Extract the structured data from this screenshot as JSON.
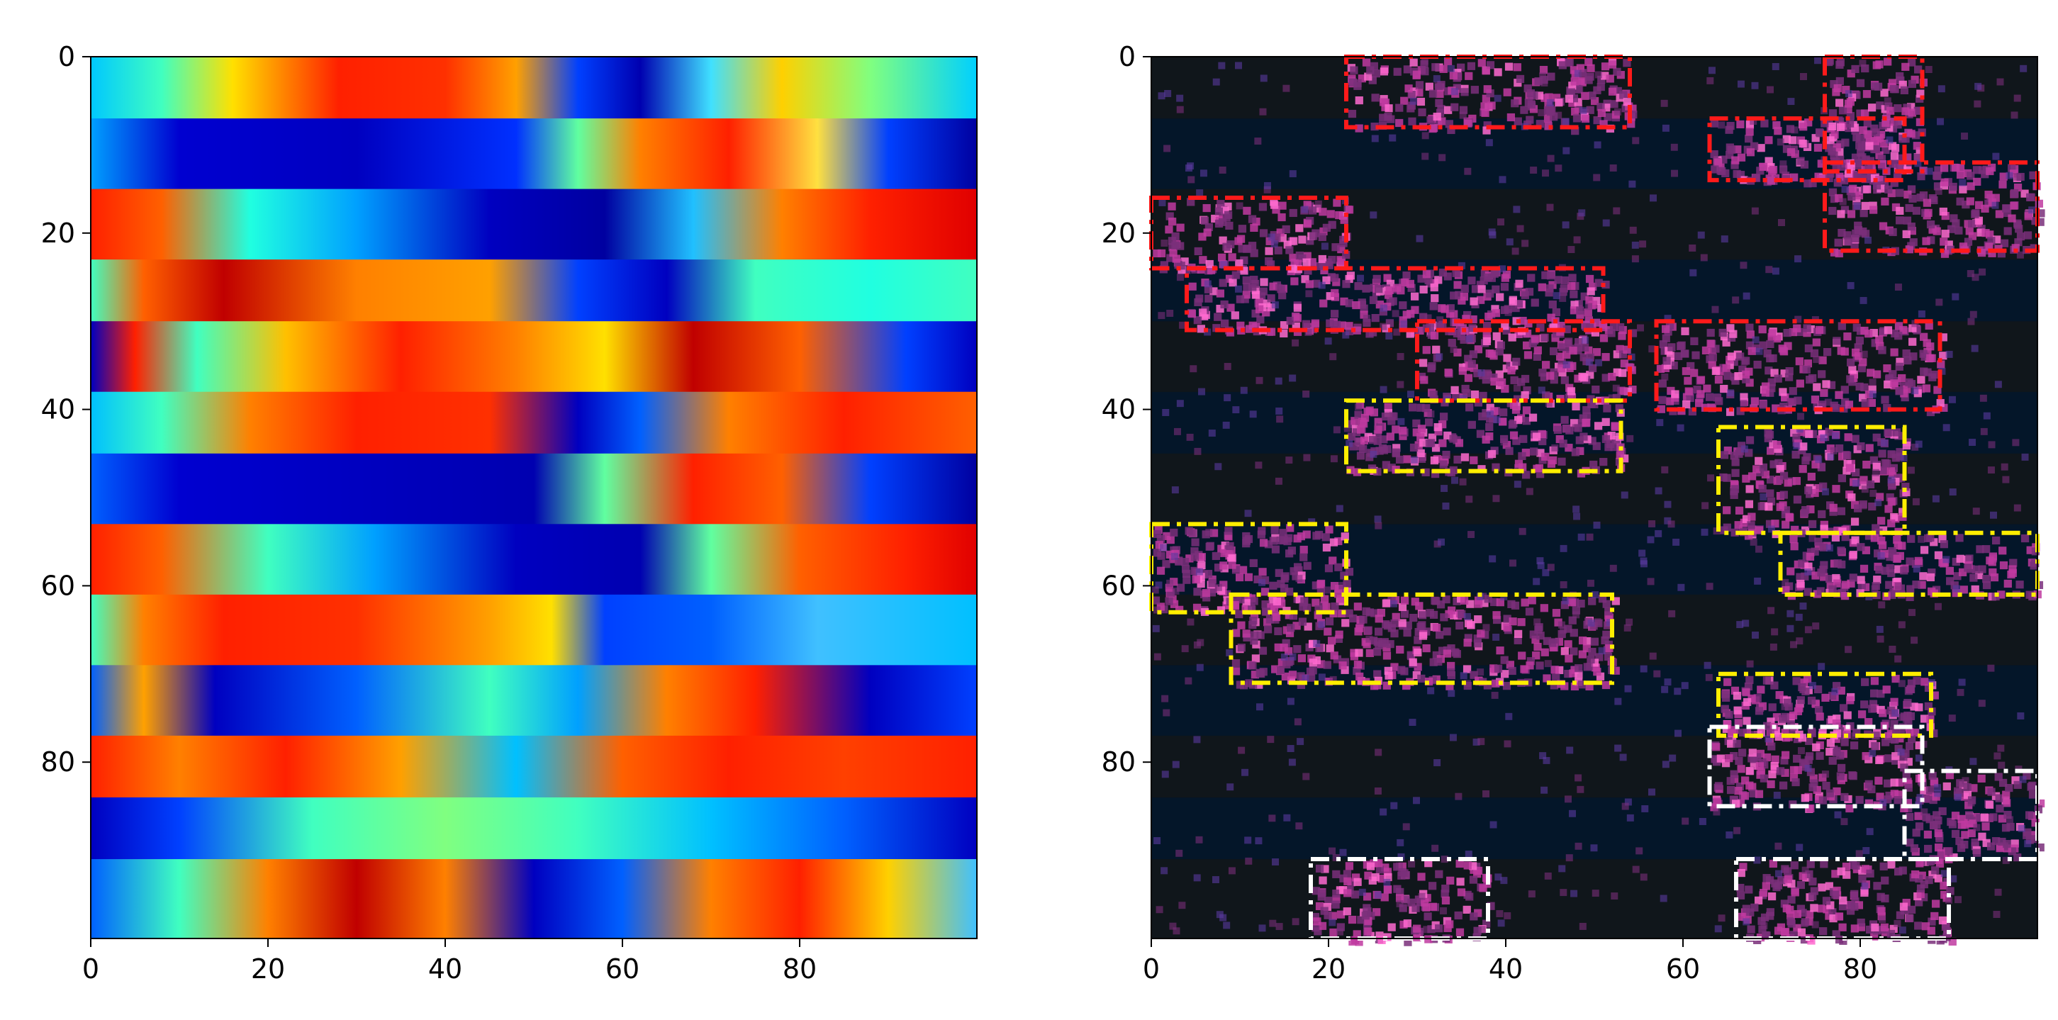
{
  "chart_data": [
    {
      "type": "heatmap",
      "title": "",
      "xlabel": "",
      "ylabel": "",
      "xlim": [
        0,
        100
      ],
      "ylim": [
        100,
        0
      ],
      "xticks": [
        0,
        20,
        40,
        60,
        80
      ],
      "yticks": [
        0,
        20,
        40,
        60,
        80
      ],
      "colormap": "jet",
      "rows": [
        {
          "y0": 0,
          "y1": 7,
          "stops": [
            [
              0,
              "#00c8ff"
            ],
            [
              8,
              "#40ffc0"
            ],
            [
              16,
              "#ffe000"
            ],
            [
              28,
              "#ff2000"
            ],
            [
              40,
              "#ff3000"
            ],
            [
              48,
              "#ffa000"
            ],
            [
              55,
              "#0040ff"
            ],
            [
              62,
              "#0000b0"
            ],
            [
              70,
              "#40e0ff"
            ],
            [
              78,
              "#ffd000"
            ],
            [
              88,
              "#80ff80"
            ],
            [
              100,
              "#00d0ff"
            ]
          ]
        },
        {
          "y0": 7,
          "y1": 15,
          "stops": [
            [
              0,
              "#00a0ff"
            ],
            [
              10,
              "#0000d0"
            ],
            [
              30,
              "#0000c0"
            ],
            [
              48,
              "#0030ff"
            ],
            [
              55,
              "#60ffa0"
            ],
            [
              62,
              "#ff8000"
            ],
            [
              72,
              "#ff2000"
            ],
            [
              82,
              "#ffe040"
            ],
            [
              90,
              "#0040ff"
            ],
            [
              100,
              "#0000a0"
            ]
          ]
        },
        {
          "y0": 15,
          "y1": 23,
          "stops": [
            [
              0,
              "#ff2000"
            ],
            [
              8,
              "#ff6000"
            ],
            [
              18,
              "#20ffe0"
            ],
            [
              30,
              "#00a0ff"
            ],
            [
              45,
              "#0000c0"
            ],
            [
              58,
              "#0000a0"
            ],
            [
              68,
              "#20c0ff"
            ],
            [
              78,
              "#ff8000"
            ],
            [
              88,
              "#ff2000"
            ],
            [
              100,
              "#e00000"
            ]
          ]
        },
        {
          "y0": 23,
          "y1": 30,
          "stops": [
            [
              0,
              "#40ffc0"
            ],
            [
              6,
              "#ff6000"
            ],
            [
              15,
              "#c00000"
            ],
            [
              30,
              "#ff8000"
            ],
            [
              45,
              "#ffa000"
            ],
            [
              55,
              "#0040ff"
            ],
            [
              65,
              "#0000c0"
            ],
            [
              75,
              "#40ffc0"
            ],
            [
              88,
              "#20ffe0"
            ],
            [
              100,
              "#40ffc0"
            ]
          ]
        },
        {
          "y0": 30,
          "y1": 38,
          "stops": [
            [
              0,
              "#0000c0"
            ],
            [
              5,
              "#ff2000"
            ],
            [
              12,
              "#40ffc0"
            ],
            [
              22,
              "#ffc000"
            ],
            [
              35,
              "#ff2000"
            ],
            [
              48,
              "#ff8000"
            ],
            [
              58,
              "#ffe000"
            ],
            [
              68,
              "#c00000"
            ],
            [
              80,
              "#ff6000"
            ],
            [
              92,
              "#0040ff"
            ],
            [
              100,
              "#0000c0"
            ]
          ]
        },
        {
          "y0": 38,
          "y1": 45,
          "stops": [
            [
              0,
              "#00c0ff"
            ],
            [
              8,
              "#40ffc0"
            ],
            [
              18,
              "#ff8000"
            ],
            [
              30,
              "#ff2000"
            ],
            [
              45,
              "#ff3000"
            ],
            [
              55,
              "#0000c0"
            ],
            [
              62,
              "#0060ff"
            ],
            [
              72,
              "#ff8000"
            ],
            [
              85,
              "#ff2000"
            ],
            [
              100,
              "#ff6000"
            ]
          ]
        },
        {
          "y0": 45,
          "y1": 53,
          "stops": [
            [
              0,
              "#0060ff"
            ],
            [
              10,
              "#0000d0"
            ],
            [
              30,
              "#0000c0"
            ],
            [
              50,
              "#0000b0"
            ],
            [
              58,
              "#60ffa0"
            ],
            [
              68,
              "#ff2000"
            ],
            [
              78,
              "#ff6000"
            ],
            [
              88,
              "#0040ff"
            ],
            [
              100,
              "#0000a0"
            ]
          ]
        },
        {
          "y0": 53,
          "y1": 61,
          "stops": [
            [
              0,
              "#ff2000"
            ],
            [
              8,
              "#ff6000"
            ],
            [
              20,
              "#40ffc0"
            ],
            [
              32,
              "#00a0ff"
            ],
            [
              48,
              "#0000c0"
            ],
            [
              62,
              "#0000b0"
            ],
            [
              70,
              "#60ffa0"
            ],
            [
              80,
              "#ff6000"
            ],
            [
              92,
              "#ff2000"
            ],
            [
              100,
              "#e00000"
            ]
          ]
        },
        {
          "y0": 61,
          "y1": 69,
          "stops": [
            [
              0,
              "#40ffc0"
            ],
            [
              6,
              "#ff8000"
            ],
            [
              15,
              "#ff2000"
            ],
            [
              30,
              "#ff3000"
            ],
            [
              45,
              "#ffa000"
            ],
            [
              52,
              "#ffe000"
            ],
            [
              58,
              "#0040ff"
            ],
            [
              70,
              "#0060ff"
            ],
            [
              82,
              "#40c0ff"
            ],
            [
              100,
              "#00c0ff"
            ]
          ]
        },
        {
          "y0": 69,
          "y1": 77,
          "stops": [
            [
              0,
              "#0060ff"
            ],
            [
              6,
              "#ffa000"
            ],
            [
              14,
              "#0000c0"
            ],
            [
              30,
              "#0060ff"
            ],
            [
              45,
              "#40ffc0"
            ],
            [
              55,
              "#00a0ff"
            ],
            [
              65,
              "#ff8000"
            ],
            [
              75,
              "#ff2000"
            ],
            [
              88,
              "#0000c0"
            ],
            [
              100,
              "#0040ff"
            ]
          ]
        },
        {
          "y0": 77,
          "y1": 84,
          "stops": [
            [
              0,
              "#ff2000"
            ],
            [
              10,
              "#ff8000"
            ],
            [
              22,
              "#ff2000"
            ],
            [
              35,
              "#ffa000"
            ],
            [
              48,
              "#00c0ff"
            ],
            [
              60,
              "#ff6000"
            ],
            [
              72,
              "#ff2000"
            ],
            [
              85,
              "#ff4000"
            ],
            [
              100,
              "#ff2000"
            ]
          ]
        },
        {
          "y0": 84,
          "y1": 91,
          "stops": [
            [
              0,
              "#0000c0"
            ],
            [
              10,
              "#0040ff"
            ],
            [
              25,
              "#40ffc0"
            ],
            [
              40,
              "#80ff80"
            ],
            [
              55,
              "#40ffc0"
            ],
            [
              70,
              "#00c0ff"
            ],
            [
              85,
              "#0060ff"
            ],
            [
              100,
              "#0000c0"
            ]
          ]
        },
        {
          "y0": 91,
          "y1": 100,
          "stops": [
            [
              0,
              "#0060ff"
            ],
            [
              10,
              "#40ffc0"
            ],
            [
              20,
              "#ff8000"
            ],
            [
              30,
              "#c00000"
            ],
            [
              40,
              "#ff8000"
            ],
            [
              50,
              "#0000c0"
            ],
            [
              60,
              "#0060ff"
            ],
            [
              70,
              "#ff8000"
            ],
            [
              80,
              "#ff2000"
            ],
            [
              90,
              "#ffd000"
            ],
            [
              100,
              "#40c0ff"
            ]
          ]
        }
      ]
    },
    {
      "type": "heatmap",
      "title": "",
      "xlabel": "",
      "ylabel": "",
      "xlim": [
        0,
        100
      ],
      "ylim": [
        100,
        0
      ],
      "xticks": [
        0,
        20,
        40,
        60,
        80
      ],
      "yticks": [
        0,
        20,
        40,
        60,
        80
      ],
      "background_color": "#061a28",
      "cluster_color": "#c03aa0",
      "boxes": [
        {
          "x": [
            22,
            54
          ],
          "y": [
            0,
            8
          ],
          "color": "#ff1a1a"
        },
        {
          "x": [
            76,
            87
          ],
          "y": [
            0,
            13
          ],
          "color": "#ff1a1a"
        },
        {
          "x": [
            63,
            85
          ],
          "y": [
            7,
            14
          ],
          "color": "#ff1a1a"
        },
        {
          "x": [
            76,
            100
          ],
          "y": [
            12,
            22
          ],
          "color": "#ff1a1a"
        },
        {
          "x": [
            0,
            22
          ],
          "y": [
            16,
            24
          ],
          "color": "#ff1a1a"
        },
        {
          "x": [
            4,
            51
          ],
          "y": [
            24,
            31
          ],
          "color": "#ff1a1a"
        },
        {
          "x": [
            30,
            54
          ],
          "y": [
            30,
            39
          ],
          "color": "#ff1a1a"
        },
        {
          "x": [
            57,
            89
          ],
          "y": [
            30,
            40
          ],
          "color": "#ff1a1a"
        },
        {
          "x": [
            22,
            53
          ],
          "y": [
            39,
            47
          ],
          "color": "#ffee00"
        },
        {
          "x": [
            64,
            85
          ],
          "y": [
            42,
            54
          ],
          "color": "#ffee00"
        },
        {
          "x": [
            0,
            22
          ],
          "y": [
            53,
            63
          ],
          "color": "#ffee00"
        },
        {
          "x": [
            71,
            100
          ],
          "y": [
            54,
            61
          ],
          "color": "#ffee00"
        },
        {
          "x": [
            9,
            52
          ],
          "y": [
            61,
            71
          ],
          "color": "#ffee00"
        },
        {
          "x": [
            64,
            88
          ],
          "y": [
            70,
            77
          ],
          "color": "#ffee00"
        },
        {
          "x": [
            63,
            87
          ],
          "y": [
            76,
            85
          ],
          "color": "#ffffff"
        },
        {
          "x": [
            85,
            100
          ],
          "y": [
            81,
            91
          ],
          "color": "#ffffff"
        },
        {
          "x": [
            18,
            38
          ],
          "y": [
            91,
            100
          ],
          "color": "#ffffff"
        },
        {
          "x": [
            66,
            90
          ],
          "y": [
            91,
            100
          ],
          "color": "#ffffff"
        }
      ]
    }
  ]
}
